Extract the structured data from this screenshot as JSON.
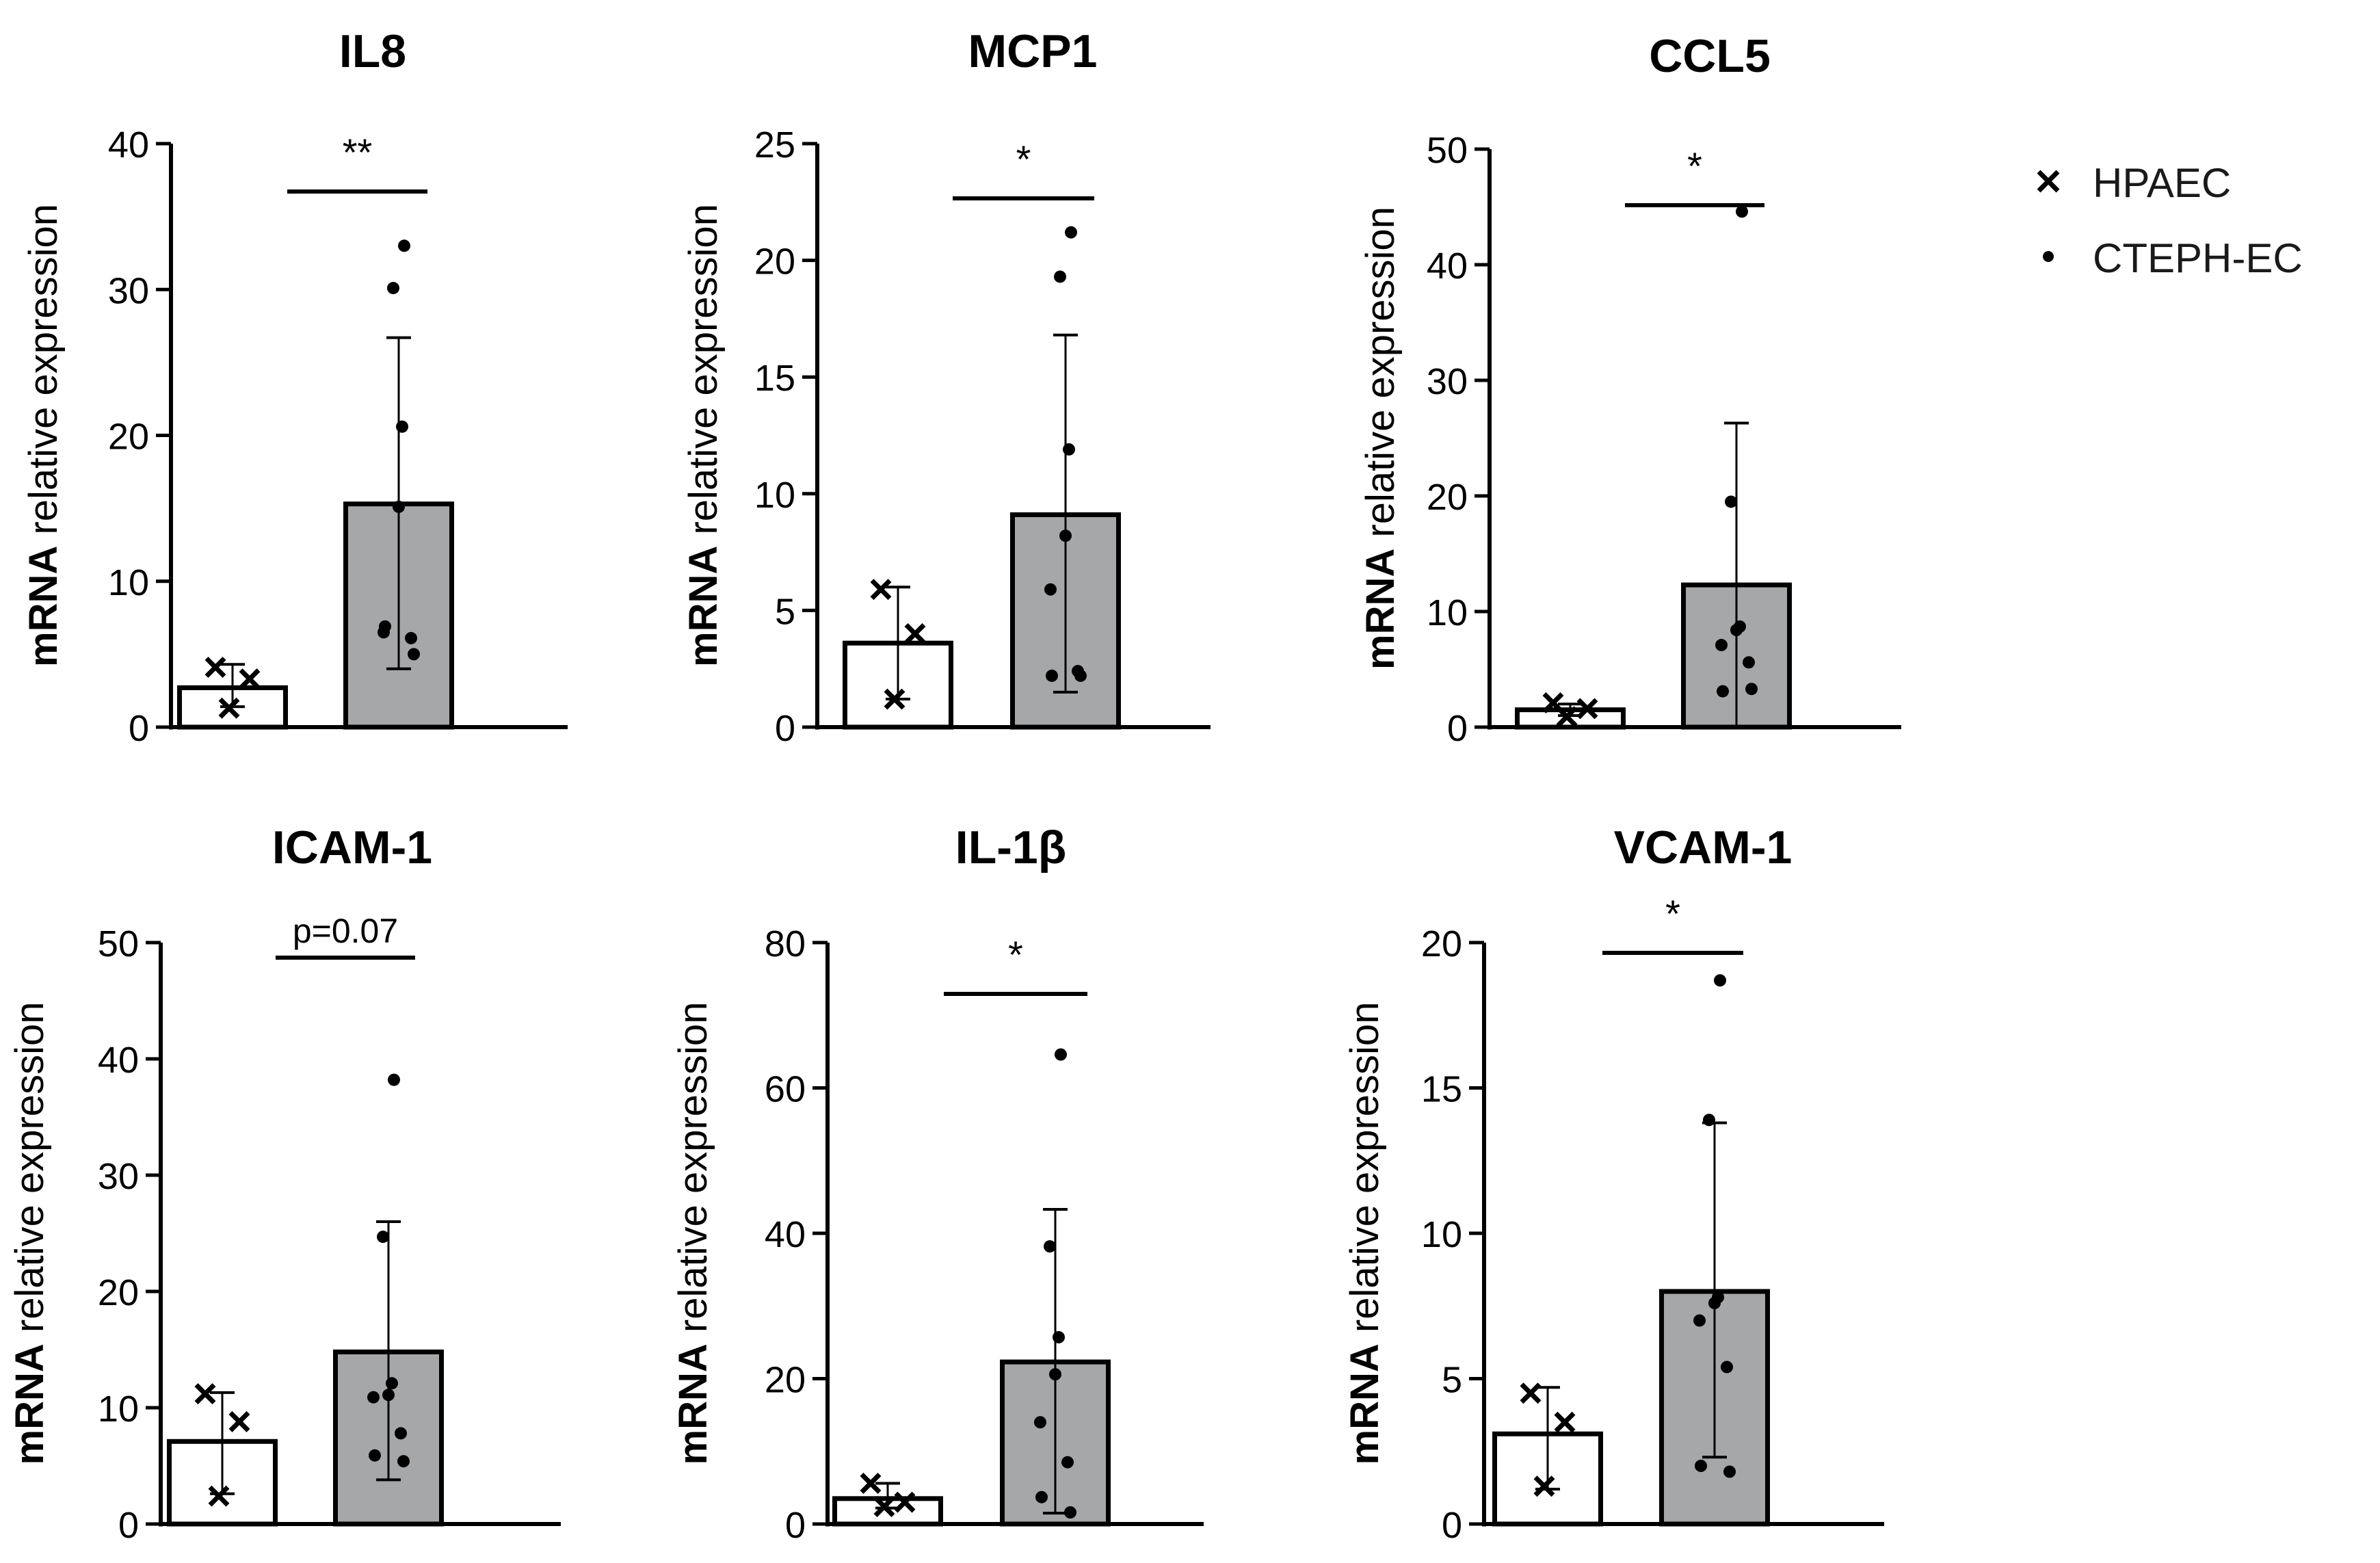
{
  "legend": {
    "items": [
      {
        "label": "HPAEC",
        "marker": "cross"
      },
      {
        "label": "CTEPH-EC",
        "marker": "dot"
      }
    ]
  },
  "colors": {
    "hpaec_fill": "#ffffff",
    "cteph_fill": "#a6a7a9",
    "ink": "#000000"
  },
  "chart_data": [
    {
      "type": "bar",
      "title": "IL8",
      "ylabel_bold": "mRNA",
      "ylabel_rest": " relative expression",
      "ylim": [
        0,
        40
      ],
      "yticks": [
        0,
        10,
        20,
        30,
        40
      ],
      "categories": [
        "HPAEC",
        "CTEPH-EC"
      ],
      "bars": [
        {
          "name": "HPAEC",
          "mean": 2.7,
          "err_low": 1.4,
          "err_high": 4.3,
          "points": [
            4.1,
            3.3,
            1.3
          ]
        },
        {
          "name": "CTEPH-EC",
          "mean": 15.3,
          "err_low": 4.0,
          "err_high": 26.7,
          "points": [
            33.0,
            30.1,
            20.6,
            15.1,
            6.5,
            6.1,
            6.9,
            5.0
          ]
        }
      ],
      "significance": "**"
    },
    {
      "type": "bar",
      "title": "MCP1",
      "ylabel_bold": "mRNA",
      "ylabel_rest": " relative expression",
      "ylim": [
        0,
        25
      ],
      "yticks": [
        0,
        5,
        10,
        15,
        20,
        25
      ],
      "categories": [
        "HPAEC",
        "CTEPH-EC"
      ],
      "bars": [
        {
          "name": "HPAEC",
          "mean": 3.6,
          "err_low": 1.2,
          "err_high": 6.0,
          "points": [
            5.9,
            4.0,
            1.2
          ]
        },
        {
          "name": "CTEPH-EC",
          "mean": 9.1,
          "err_low": 1.5,
          "err_high": 16.8,
          "points": [
            21.2,
            19.3,
            11.9,
            8.2,
            5.9,
            2.4,
            2.2,
            2.2
          ]
        }
      ],
      "significance": "*"
    },
    {
      "type": "bar",
      "title": "CCL5",
      "ylabel_bold": "mRNA",
      "ylabel_rest": " relative expression",
      "ylim": [
        0,
        50
      ],
      "yticks": [
        0,
        10,
        20,
        30,
        40,
        50
      ],
      "categories": [
        "HPAEC",
        "CTEPH-EC"
      ],
      "bars": [
        {
          "name": "HPAEC",
          "mean": 1.5,
          "err_low": 1.0,
          "err_high": 2.0,
          "points": [
            2.1,
            1.6,
            0.9
          ]
        },
        {
          "name": "CTEPH-EC",
          "mean": 12.3,
          "err_low": 0.0,
          "err_high": 26.3,
          "points": [
            44.6,
            19.5,
            8.7,
            8.4,
            7.1,
            5.6,
            3.1,
            3.3
          ]
        }
      ],
      "significance": "*"
    },
    {
      "type": "bar",
      "title": "ICAM-1",
      "ylabel_bold": "mRNA",
      "ylabel_rest": " relative expression",
      "ylim": [
        0,
        50
      ],
      "yticks": [
        0,
        10,
        20,
        30,
        40,
        50
      ],
      "categories": [
        "HPAEC",
        "CTEPH-EC"
      ],
      "bars": [
        {
          "name": "HPAEC",
          "mean": 7.1,
          "err_low": 2.6,
          "err_high": 11.3,
          "points": [
            11.2,
            8.8,
            2.4
          ]
        },
        {
          "name": "CTEPH-EC",
          "mean": 14.8,
          "err_low": 3.8,
          "err_high": 26.0,
          "points": [
            38.2,
            24.7,
            12.1,
            11.1,
            10.9,
            7.8,
            5.9,
            5.4
          ]
        }
      ],
      "significance": "p=0.07"
    },
    {
      "type": "bar",
      "title": "IL-1β",
      "ylabel_bold": "mRNA",
      "ylabel_rest": " relative expression",
      "ylim": [
        0,
        80
      ],
      "yticks": [
        0,
        20,
        40,
        60,
        80
      ],
      "categories": [
        "HPAEC",
        "CTEPH-EC"
      ],
      "bars": [
        {
          "name": "HPAEC",
          "mean": 3.5,
          "err_low": 2.2,
          "err_high": 5.6,
          "points": [
            5.6,
            3.0,
            2.4
          ]
        },
        {
          "name": "CTEPH-EC",
          "mean": 22.3,
          "err_low": 1.5,
          "err_high": 43.3,
          "points": [
            64.6,
            38.2,
            25.7,
            20.6,
            14.0,
            8.5,
            3.7,
            1.6
          ]
        }
      ],
      "significance": "*"
    },
    {
      "type": "bar",
      "title": "VCAM-1",
      "ylabel_bold": "mRNA",
      "ylabel_rest": " relative expression",
      "ylim": [
        0,
        20
      ],
      "yticks": [
        0,
        5,
        10,
        15,
        20
      ],
      "categories": [
        "HPAEC",
        "CTEPH-EC"
      ],
      "bars": [
        {
          "name": "HPAEC",
          "mean": 3.1,
          "err_low": 1.2,
          "err_high": 4.7,
          "points": [
            4.5,
            3.5,
            1.3
          ]
        },
        {
          "name": "CTEPH-EC",
          "mean": 8.0,
          "err_low": 2.3,
          "err_high": 13.8,
          "points": [
            18.7,
            13.9,
            7.8,
            7.6,
            7.0,
            5.4,
            2.0,
            1.8
          ]
        }
      ],
      "significance": "*"
    }
  ]
}
